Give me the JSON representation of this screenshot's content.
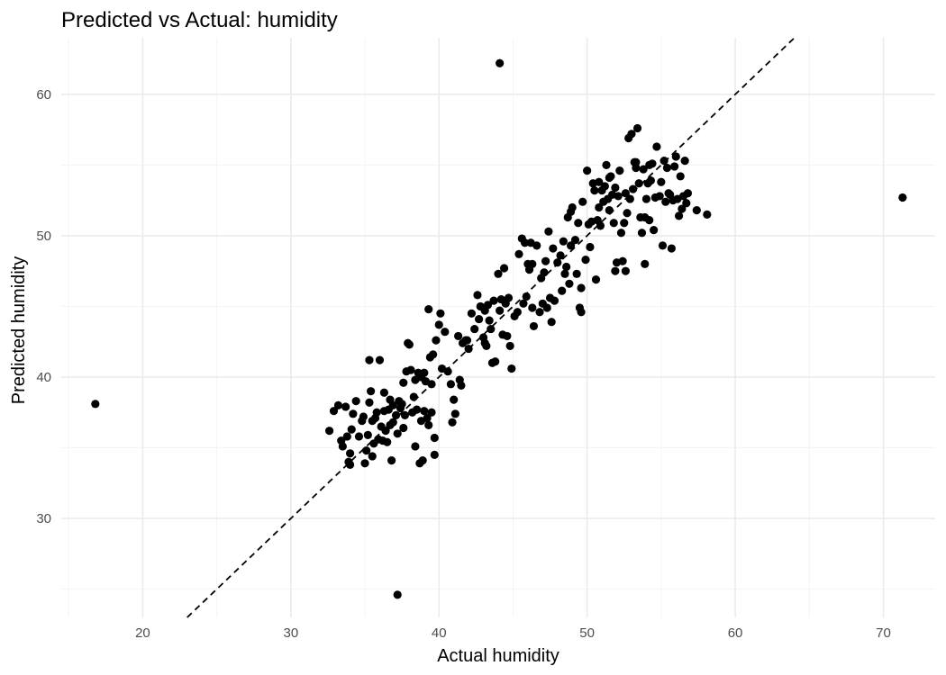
{
  "chart_data": {
    "type": "scatter",
    "title": "Predicted vs Actual: humidity",
    "xlabel": "Actual humidity",
    "ylabel": "Predicted humidity",
    "xlim": [
      14.5,
      73.5
    ],
    "ylim": [
      23,
      64
    ],
    "x_ticks": [
      20,
      30,
      40,
      50,
      60,
      70
    ],
    "y_ticks": [
      30,
      40,
      50,
      60
    ],
    "grid": true,
    "reference_line": {
      "style": "dashed",
      "slope": 1,
      "intercept": 0,
      "color": "#000000"
    },
    "point_color": "#000000",
    "points": [
      [
        16.8,
        38.1
      ],
      [
        44.1,
        62.2
      ],
      [
        71.3,
        52.7
      ],
      [
        37.2,
        24.6
      ],
      [
        32.6,
        36.2
      ],
      [
        32.9,
        37.6
      ],
      [
        33.2,
        38.0
      ],
      [
        33.4,
        35.5
      ],
      [
        33.5,
        35.1
      ],
      [
        33.7,
        37.9
      ],
      [
        33.8,
        35.8
      ],
      [
        33.9,
        34.0
      ],
      [
        34.0,
        33.8
      ],
      [
        34.0,
        34.6
      ],
      [
        34.1,
        36.3
      ],
      [
        34.2,
        37.4
      ],
      [
        34.4,
        38.3
      ],
      [
        34.6,
        35.8
      ],
      [
        34.9,
        37.2
      ],
      [
        35.1,
        34.8
      ],
      [
        35.2,
        35.9
      ],
      [
        35.3,
        41.2
      ],
      [
        35.3,
        38.2
      ],
      [
        35.4,
        39.0
      ],
      [
        35.5,
        36.9
      ],
      [
        35.6,
        35.3
      ],
      [
        35.7,
        37.1
      ],
      [
        35.9,
        35.6
      ],
      [
        36.0,
        41.2
      ],
      [
        36.1,
        36.5
      ],
      [
        36.3,
        37.6
      ],
      [
        36.4,
        36.2
      ],
      [
        36.3,
        38.9
      ],
      [
        36.5,
        35.4
      ],
      [
        36.6,
        37.7
      ],
      [
        36.7,
        38.4
      ],
      [
        36.8,
        34.1
      ],
      [
        36.9,
        36.8
      ],
      [
        37.1,
        37.3
      ],
      [
        37.2,
        36.0
      ],
      [
        37.3,
        38.3
      ],
      [
        37.4,
        37.8
      ],
      [
        37.5,
        38.1
      ],
      [
        37.6,
        39.6
      ],
      [
        37.7,
        37.3
      ],
      [
        37.8,
        40.4
      ],
      [
        37.9,
        42.4
      ],
      [
        38.0,
        42.3
      ],
      [
        38.1,
        40.5
      ],
      [
        38.2,
        37.5
      ],
      [
        38.3,
        38.6
      ],
      [
        38.4,
        35.1
      ],
      [
        38.5,
        37.7
      ],
      [
        38.6,
        40.3
      ],
      [
        38.7,
        33.9
      ],
      [
        38.8,
        40.0
      ],
      [
        38.9,
        34.1
      ],
      [
        39.0,
        37.6
      ],
      [
        39.1,
        39.7
      ],
      [
        39.2,
        37.1
      ],
      [
        39.3,
        36.6
      ],
      [
        39.3,
        44.8
      ],
      [
        39.4,
        41.4
      ],
      [
        39.5,
        37.5
      ],
      [
        39.6,
        41.6
      ],
      [
        39.7,
        35.7
      ],
      [
        39.7,
        34.5
      ],
      [
        39.8,
        42.6
      ],
      [
        40.0,
        43.7
      ],
      [
        40.1,
        44.5
      ],
      [
        40.4,
        43.2
      ],
      [
        40.6,
        40.4
      ],
      [
        40.8,
        39.5
      ],
      [
        40.9,
        36.8
      ],
      [
        41.0,
        38.4
      ],
      [
        41.1,
        37.4
      ],
      [
        41.3,
        42.9
      ],
      [
        41.4,
        39.8
      ],
      [
        41.5,
        39.4
      ],
      [
        41.6,
        42.4
      ],
      [
        41.8,
        42.6
      ],
      [
        42.0,
        42.0
      ],
      [
        42.2,
        44.5
      ],
      [
        42.4,
        43.4
      ],
      [
        42.6,
        45.8
      ],
      [
        42.8,
        45.0
      ],
      [
        43.0,
        42.8
      ],
      [
        43.1,
        42.4
      ],
      [
        43.2,
        42.2
      ],
      [
        43.3,
        45.1
      ],
      [
        43.4,
        44.0
      ],
      [
        43.5,
        43.4
      ],
      [
        43.6,
        41.0
      ],
      [
        43.7,
        45.4
      ],
      [
        43.8,
        41.1
      ],
      [
        44.0,
        47.3
      ],
      [
        44.1,
        44.7
      ],
      [
        44.2,
        45.5
      ],
      [
        44.3,
        43.0
      ],
      [
        44.4,
        47.7
      ],
      [
        44.6,
        42.9
      ],
      [
        44.7,
        45.6
      ],
      [
        44.8,
        42.2
      ],
      [
        44.9,
        40.6
      ],
      [
        45.1,
        44.3
      ],
      [
        45.3,
        44.6
      ],
      [
        45.4,
        48.7
      ],
      [
        45.6,
        49.8
      ],
      [
        45.7,
        45.2
      ],
      [
        45.9,
        45.7
      ],
      [
        46.0,
        48.0
      ],
      [
        46.1,
        47.6
      ],
      [
        46.2,
        49.5
      ],
      [
        46.3,
        44.9
      ],
      [
        46.4,
        43.6
      ],
      [
        46.6,
        49.3
      ],
      [
        46.8,
        44.6
      ],
      [
        46.9,
        47.0
      ],
      [
        47.0,
        45.2
      ],
      [
        47.1,
        47.4
      ],
      [
        47.2,
        48.2
      ],
      [
        47.3,
        44.9
      ],
      [
        47.4,
        50.3
      ],
      [
        47.5,
        45.6
      ],
      [
        47.6,
        43.9
      ],
      [
        47.8,
        45.4
      ],
      [
        48.0,
        48.1
      ],
      [
        48.2,
        48.6
      ],
      [
        48.3,
        46.1
      ],
      [
        48.4,
        49.6
      ],
      [
        48.5,
        47.3
      ],
      [
        48.6,
        47.8
      ],
      [
        48.7,
        51.3
      ],
      [
        48.8,
        46.6
      ],
      [
        48.9,
        49.3
      ],
      [
        49.0,
        52.0
      ],
      [
        49.2,
        49.7
      ],
      [
        49.3,
        47.3
      ],
      [
        49.4,
        50.9
      ],
      [
        49.5,
        44.9
      ],
      [
        49.6,
        44.6
      ],
      [
        49.7,
        52.4
      ],
      [
        49.9,
        48.3
      ],
      [
        50.0,
        54.6
      ],
      [
        50.2,
        49.2
      ],
      [
        50.3,
        51.0
      ],
      [
        50.4,
        53.7
      ],
      [
        50.5,
        53.2
      ],
      [
        50.6,
        46.9
      ],
      [
        50.7,
        51.1
      ],
      [
        50.8,
        53.8
      ],
      [
        50.9,
        50.7
      ],
      [
        51.0,
        53.2
      ],
      [
        51.1,
        52.4
      ],
      [
        51.2,
        53.5
      ],
      [
        51.3,
        55.0
      ],
      [
        51.4,
        52.6
      ],
      [
        51.5,
        51.8
      ],
      [
        51.6,
        54.2
      ],
      [
        51.7,
        52.9
      ],
      [
        51.8,
        50.9
      ],
      [
        51.9,
        53.4
      ],
      [
        52.0,
        48.1
      ],
      [
        52.1,
        52.8
      ],
      [
        52.2,
        54.6
      ],
      [
        52.3,
        50.2
      ],
      [
        52.4,
        48.2
      ],
      [
        52.5,
        50.9
      ],
      [
        52.6,
        53.0
      ],
      [
        52.7,
        51.6
      ],
      [
        52.8,
        56.9
      ],
      [
        52.9,
        52.6
      ],
      [
        53.0,
        57.2
      ],
      [
        53.1,
        53.3
      ],
      [
        53.2,
        55.2
      ],
      [
        53.3,
        54.8
      ],
      [
        53.4,
        57.6
      ],
      [
        53.5,
        53.7
      ],
      [
        53.6,
        51.3
      ],
      [
        53.7,
        50.2
      ],
      [
        53.8,
        54.7
      ],
      [
        53.9,
        51.3
      ],
      [
        54.0,
        52.6
      ],
      [
        54.1,
        53.7
      ],
      [
        54.2,
        51.1
      ],
      [
        54.3,
        53.9
      ],
      [
        54.4,
        55.1
      ],
      [
        54.5,
        50.4
      ],
      [
        54.6,
        52.7
      ],
      [
        54.7,
        56.3
      ],
      [
        54.9,
        52.8
      ],
      [
        55.0,
        53.8
      ],
      [
        55.1,
        49.3
      ],
      [
        55.2,
        55.3
      ],
      [
        55.3,
        52.4
      ],
      [
        55.4,
        54.8
      ],
      [
        55.5,
        53.0
      ],
      [
        55.6,
        52.9
      ],
      [
        55.7,
        49.1
      ],
      [
        55.8,
        52.5
      ],
      [
        55.9,
        54.9
      ],
      [
        56.0,
        55.6
      ],
      [
        56.1,
        52.6
      ],
      [
        56.2,
        51.4
      ],
      [
        56.3,
        54.2
      ],
      [
        56.4,
        51.9
      ],
      [
        56.5,
        52.8
      ],
      [
        56.6,
        55.3
      ],
      [
        56.7,
        52.3
      ],
      [
        56.8,
        53.0
      ],
      [
        57.4,
        51.8
      ],
      [
        58.1,
        51.5
      ],
      [
        49.6,
        46.3
      ],
      [
        50.8,
        52.0
      ],
      [
        51.9,
        47.5
      ],
      [
        52.6,
        47.5
      ],
      [
        53.9,
        48.0
      ],
      [
        51.5,
        54.1
      ],
      [
        53.3,
        55.2
      ],
      [
        48.9,
        51.7
      ],
      [
        46.3,
        48.0
      ],
      [
        45.8,
        49.5
      ],
      [
        44.5,
        45.2
      ],
      [
        43.1,
        44.7
      ],
      [
        42.7,
        44.1
      ],
      [
        41.9,
        42.6
      ],
      [
        40.2,
        40.6
      ],
      [
        39.0,
        40.3
      ],
      [
        38.4,
        39.8
      ],
      [
        36.9,
        38.0
      ],
      [
        35.8,
        37.5
      ],
      [
        34.8,
        36.9
      ],
      [
        37.6,
        36.4
      ],
      [
        38.8,
        36.9
      ],
      [
        36.2,
        35.5
      ],
      [
        35.0,
        33.9
      ],
      [
        35.5,
        34.4
      ],
      [
        36.7,
        36.6
      ],
      [
        39.5,
        39.5
      ],
      [
        47.7,
        49.1
      ],
      [
        50.1,
        50.8
      ],
      [
        54.2,
        55.0
      ]
    ]
  }
}
